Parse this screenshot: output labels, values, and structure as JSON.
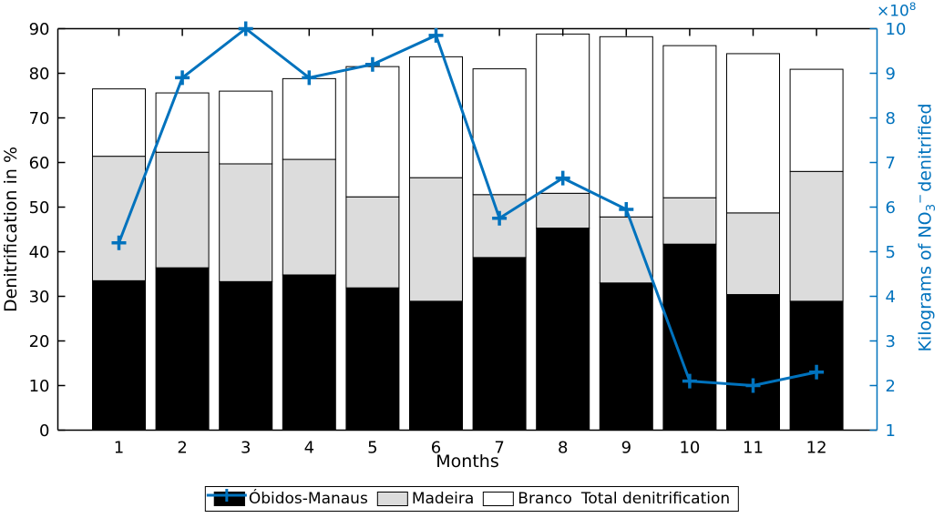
{
  "chart_data": {
    "type": "bar",
    "subtype": "stacked-bars-with-line-overlay",
    "categories": [
      "1",
      "2",
      "3",
      "4",
      "5",
      "6",
      "7",
      "8",
      "9",
      "10",
      "11",
      "12"
    ],
    "series": [
      {
        "name": "Óbidos-Manaus",
        "type": "bar",
        "color": "#000000",
        "values": [
          33.5,
          36.4,
          33.3,
          34.8,
          31.9,
          28.9,
          38.7,
          45.3,
          33.0,
          41.7,
          30.4,
          28.9
        ]
      },
      {
        "name": "Madeira",
        "type": "bar",
        "color": "#DCDCDC",
        "values": [
          27.9,
          25.9,
          26.4,
          25.9,
          20.4,
          27.7,
          14.1,
          7.8,
          14.8,
          10.4,
          18.3,
          29.1
        ]
      },
      {
        "name": "Branco",
        "type": "bar",
        "color": "#FFFFFF",
        "values": [
          15.1,
          13.3,
          16.3,
          18.1,
          29.2,
          27.1,
          28.2,
          35.7,
          40.4,
          34.1,
          35.7,
          22.9
        ]
      },
      {
        "name": "Total denitrification",
        "type": "line",
        "axis": "right",
        "color": "#0072BD",
        "marker": "plus",
        "values": [
          5.2,
          8.9,
          10.0,
          8.9,
          9.2,
          9.85,
          5.75,
          6.65,
          5.95,
          2.1,
          2.0,
          2.3
        ]
      }
    ],
    "stack_totals": [
      76.5,
      75.6,
      76.0,
      78.8,
      81.5,
      83.7,
      81.0,
      88.8,
      88.2,
      86.2,
      84.4,
      80.9
    ],
    "xlabel": "Months",
    "ylabel_left": "Denitrification in %",
    "ylabel_right_parts": {
      "pre": "Kilograms of NO",
      "sub": "3",
      "sup": "−",
      "post": "denitrified"
    },
    "right_axis_multiplier_parts": {
      "base": "×10",
      "exponent": "8"
    },
    "ylim_left": [
      0,
      90
    ],
    "yticks_left": [
      0,
      10,
      20,
      30,
      40,
      50,
      60,
      70,
      80,
      90
    ],
    "ylim_right": [
      1,
      10
    ],
    "yticks_right": [
      1,
      2,
      3,
      4,
      5,
      6,
      7,
      8,
      9,
      10
    ],
    "right_axis_unit_scale": "1e8 kg",
    "grid": false,
    "legend_position": "below-x-axis",
    "colors": {
      "accent_blue": "#0072BD",
      "bar_black": "#000000",
      "bar_gray": "#DCDCDC",
      "bar_white": "#FFFFFF",
      "frame": "#000000"
    }
  }
}
